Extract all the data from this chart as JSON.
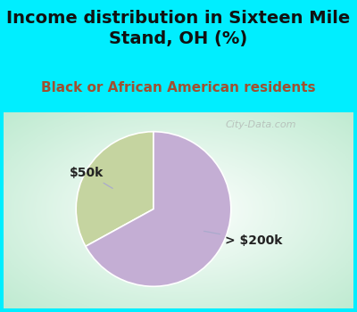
{
  "title": "Income distribution in Sixteen Mile\nStand, OH (%)",
  "subtitle": "Black or African American residents",
  "slices": [
    {
      "label": "$50k",
      "value": 33,
      "color": "#c5d4a0"
    },
    {
      "label": "> $200k",
      "value": 67,
      "color": "#c4aed4"
    }
  ],
  "title_fontsize": 14,
  "subtitle_fontsize": 11,
  "title_color": "#111111",
  "subtitle_color": "#a05030",
  "bg_cyan": "#00eeff",
  "startangle": 90,
  "label_fontsize": 10,
  "label_color": "#222222",
  "watermark_color": "#aaaaaa",
  "watermark_alpha": 0.65,
  "arrow_color": "#aaaacc"
}
